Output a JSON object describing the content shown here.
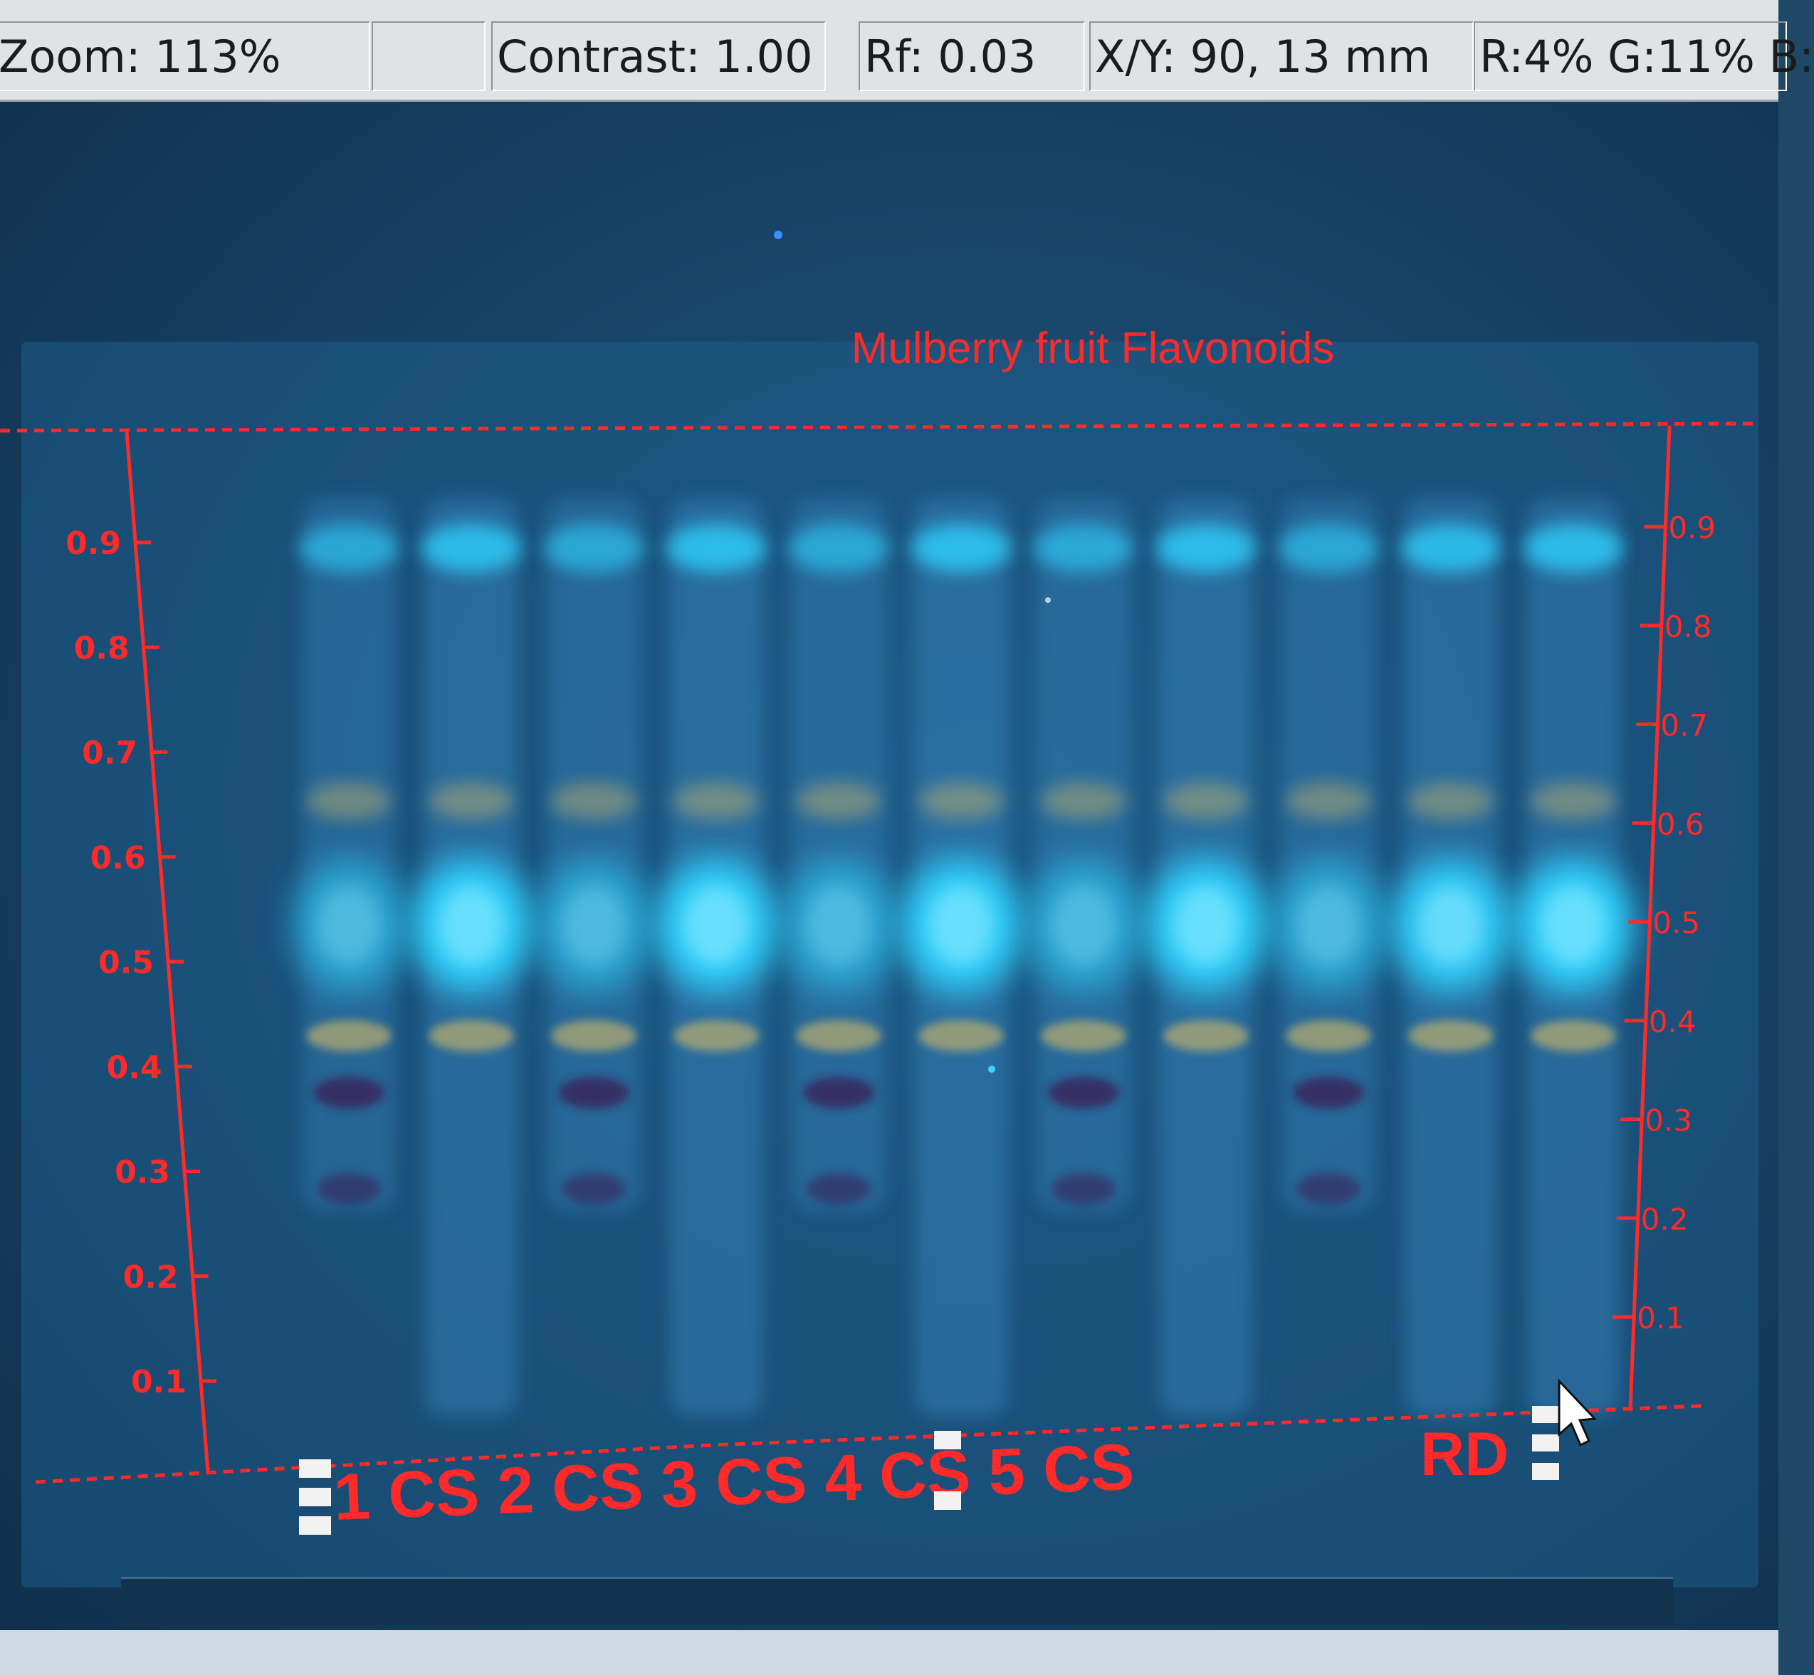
{
  "statusbar": {
    "zoom": "Zoom: 113%",
    "blank": "",
    "contrast": "Contrast: 1.00",
    "rf": "Rf: 0.03",
    "xy": "X/Y:  90,  13 mm",
    "rgb": "R:4% G:11% B:"
  },
  "plate": {
    "title": "Mulberry fruit Flavonoids",
    "axis_ticks": [
      "0.9",
      "0.8",
      "0.7",
      "0.6",
      "0.5",
      "0.4",
      "0.3",
      "0.2",
      "0.1"
    ],
    "lane_labels": "1 CS 2 CS 3 CS 4 CS 5 CS",
    "rd_label": "RD",
    "lanes": [
      {
        "label": "1",
        "intensity": 0.55
      },
      {
        "label": "CS",
        "intensity": 0.95
      },
      {
        "label": "2",
        "intensity": 0.55
      },
      {
        "label": "CS",
        "intensity": 0.95
      },
      {
        "label": "3",
        "intensity": 0.55
      },
      {
        "label": "CS",
        "intensity": 0.95
      },
      {
        "label": "4",
        "intensity": 0.55
      },
      {
        "label": "CS",
        "intensity": 0.95
      },
      {
        "label": "5",
        "intensity": 0.55
      },
      {
        "label": "CS",
        "intensity": 0.9
      },
      {
        "label": "RD",
        "intensity": 0.95
      }
    ],
    "colors": {
      "overlay_red": "#ff2a2a",
      "fluorescence": "#2fd3ff",
      "band_yellow": "#c9b46a",
      "band_dark": "#3a1f55"
    }
  }
}
